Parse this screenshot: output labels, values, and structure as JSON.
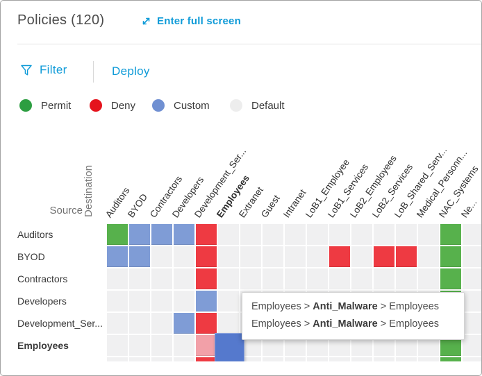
{
  "header": {
    "title": "Policies (120)",
    "fullscreen_label": "Enter full screen"
  },
  "toolbar": {
    "filter_label": "Filter",
    "deploy_label": "Deploy"
  },
  "legend": {
    "items": [
      {
        "label": "Permit",
        "color": "#2d9e41"
      },
      {
        "label": "Deny",
        "color": "#e5131d"
      },
      {
        "label": "Custom",
        "color": "#7090d2"
      },
      {
        "label": "Default",
        "color": "#ededed"
      }
    ]
  },
  "matrix": {
    "source_label": "Source",
    "destination_label": "Destination",
    "columns": [
      {
        "label": "Auditors",
        "bold": false
      },
      {
        "label": "BYOD",
        "bold": false
      },
      {
        "label": "Contractors",
        "bold": false
      },
      {
        "label": "Developers",
        "bold": false
      },
      {
        "label": "Development_Ser...",
        "bold": false
      },
      {
        "label": "Employees",
        "bold": true
      },
      {
        "label": "Extranet",
        "bold": false
      },
      {
        "label": "Guest",
        "bold": false
      },
      {
        "label": "Intranet",
        "bold": false
      },
      {
        "label": "LoB1_Employee",
        "bold": false
      },
      {
        "label": "LoB1_Services",
        "bold": false
      },
      {
        "label": "LoB2_Employees",
        "bold": false
      },
      {
        "label": "LoB2_Services",
        "bold": false
      },
      {
        "label": "LoB_Shared_Serv...",
        "bold": false
      },
      {
        "label": "Medical_Personn...",
        "bold": false
      },
      {
        "label": "NAC_Systems",
        "bold": false
      },
      {
        "label": "Ne...",
        "bold": false
      }
    ],
    "rows": [
      {
        "label": "Auditors",
        "bold": false,
        "cells": [
          "P",
          "C",
          "C",
          "C",
          "D",
          "-",
          "-",
          "-",
          "-",
          "-",
          "-",
          "-",
          "-",
          "-",
          "-",
          "P",
          "-"
        ]
      },
      {
        "label": "BYOD",
        "bold": false,
        "cells": [
          "C",
          "C",
          "-",
          "-",
          "D",
          "-",
          "-",
          "-",
          "-",
          "-",
          "D",
          "-",
          "D",
          "D",
          "-",
          "P",
          "-"
        ]
      },
      {
        "label": "Contractors",
        "bold": false,
        "cells": [
          "-",
          "-",
          "-",
          "-",
          "D",
          "-",
          "-",
          "-",
          "-",
          "-",
          "-",
          "-",
          "-",
          "-",
          "-",
          "P",
          "-"
        ]
      },
      {
        "label": "Developers",
        "bold": false,
        "cells": [
          "-",
          "-",
          "-",
          "-",
          "C",
          "-",
          "-",
          "-",
          "-",
          "-",
          "-",
          "-",
          "-",
          "-",
          "-",
          "P",
          "-"
        ]
      },
      {
        "label": "Development_Ser...",
        "bold": false,
        "cells": [
          "-",
          "-",
          "-",
          "C",
          "D",
          "-",
          "-",
          "-",
          "-",
          "-",
          "-",
          "-",
          "-",
          "-",
          "-",
          "P",
          "-"
        ]
      },
      {
        "label": "Employees",
        "bold": true,
        "cells": [
          "-",
          "-",
          "-",
          "-",
          "L",
          "S",
          "-",
          "-",
          "-",
          "-",
          "-",
          "-",
          "-",
          "-",
          "-",
          "P",
          "-"
        ]
      },
      {
        "label": "",
        "bold": false,
        "cells": [
          "-",
          "-",
          "-",
          "-",
          "D",
          "S",
          "-",
          "-",
          "-",
          "-",
          "-",
          "-",
          "-",
          "-",
          "-",
          "P",
          "-"
        ]
      }
    ],
    "cell_colors": {
      "permit": "#57b14c",
      "deny": "#ee3a42",
      "custom": "#7f9cd6",
      "default": "#f0f0f1",
      "deny_light": "#f2a0a8",
      "custom_selected": "#5579cd"
    }
  },
  "tooltip": {
    "lines": [
      {
        "prefix": "Employees > ",
        "bold": "Anti_Malware",
        "suffix": " > Employees"
      },
      {
        "prefix": "Employees > ",
        "bold": "Anti_Malware",
        "suffix": " > Employees"
      }
    ]
  }
}
